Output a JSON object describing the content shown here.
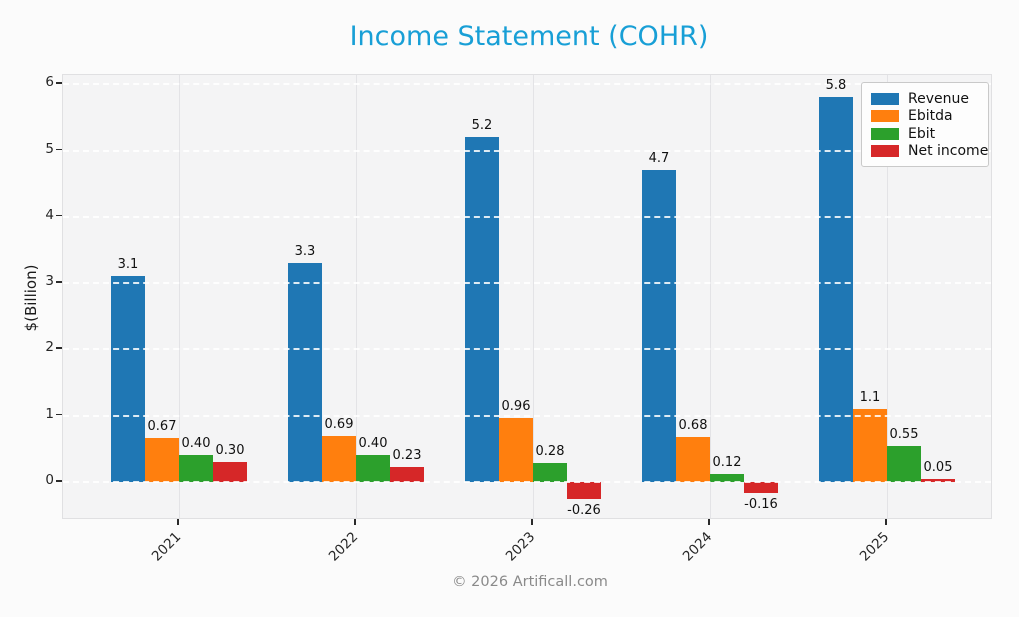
{
  "title": "Income Statement (COHR)",
  "title_color": "#189fd6",
  "footer": "© 2026 Artificall.com",
  "chart_data": {
    "type": "bar",
    "title": "Income Statement (COHR)",
    "xlabel": "",
    "ylabel": "$(Billion)",
    "categories": [
      "2021",
      "2022",
      "2023",
      "2024",
      "2025"
    ],
    "series": [
      {
        "name": "Revenue",
        "color": "#1f77b4",
        "values": [
          3.1,
          3.3,
          5.2,
          4.7,
          5.8
        ],
        "labels": [
          "3.1",
          "3.3",
          "5.2",
          "4.7",
          "5.8"
        ]
      },
      {
        "name": "Ebitda",
        "color": "#ff7f0e",
        "values": [
          0.67,
          0.69,
          0.96,
          0.68,
          1.1
        ],
        "labels": [
          "0.67",
          "0.69",
          "0.96",
          "0.68",
          "1.1"
        ]
      },
      {
        "name": "Ebit",
        "color": "#2ca02c",
        "values": [
          0.4,
          0.4,
          0.28,
          0.12,
          0.55
        ],
        "labels": [
          "0.40",
          "0.40",
          "0.28",
          "0.12",
          "0.55"
        ]
      },
      {
        "name": "Net income",
        "color": "#d62728",
        "values": [
          0.3,
          0.23,
          -0.26,
          -0.16,
          0.05
        ],
        "labels": [
          "0.30",
          "0.23",
          "-0.26",
          "-0.16",
          "0.05"
        ]
      }
    ],
    "yticks": [
      0,
      1,
      2,
      3,
      4,
      5,
      6
    ],
    "ylim": [
      -0.6,
      6.14
    ],
    "grid": true,
    "grid_style": "horizontal dashed white over bars, vertical solid light gray under bars",
    "legend_position": "upper right",
    "plot_background": "#f4f4f5",
    "figure_background": "#fbfbfb"
  }
}
